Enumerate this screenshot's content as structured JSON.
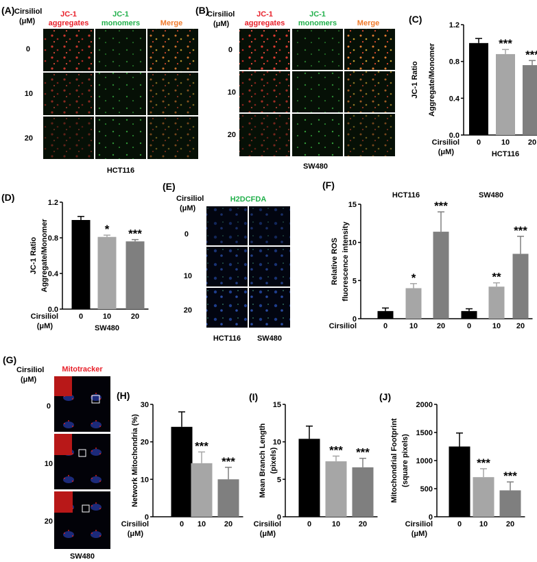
{
  "panels": {
    "A": {
      "label": "(A)",
      "dose_header": "Cirsiliol",
      "dose_unit": "(μM)",
      "col_headers": [
        "JC-1",
        "aggregates",
        "JC-1",
        "monomers",
        "Merge"
      ],
      "row_labels": [
        "0",
        "10",
        "20"
      ],
      "cell_line": "HCT116"
    },
    "B": {
      "label": "(B)",
      "dose_header": "Cirsiliol",
      "dose_unit": "(μM)",
      "col_headers": [
        "JC-1",
        "aggregates",
        "JC-1",
        "monomers",
        "Merge"
      ],
      "row_labels": [
        "0",
        "10",
        "20"
      ],
      "cell_line": "SW480"
    },
    "E": {
      "label": "(E)",
      "dose_header": "Cirsiliol",
      "dose_unit": "(μM)",
      "stain": "H2DCFDA",
      "row_labels": [
        "0",
        "10",
        "20"
      ],
      "col_footers": [
        "HCT116",
        "SW480"
      ]
    },
    "G": {
      "label": "(G)",
      "dose_header": "Cirsiliol",
      "dose_unit": "(μM)",
      "stain": "Mitotracker",
      "row_labels": [
        "0",
        "10",
        "20"
      ],
      "cell_line": "SW480"
    }
  },
  "colors": {
    "black_bar": "#000000",
    "light_bar": "#a6a6a6",
    "mid_bar": "#7f7f7f",
    "red_label": "#e8202a",
    "green_label": "#21b04b",
    "orange_label": "#f07a2a",
    "micro_bg": "#061006"
  },
  "chart_data": [
    {
      "panel": "(C)",
      "type": "bar",
      "ylabel": [
        "JC-1 Ratio",
        "Aggregate/Monomer"
      ],
      "ylim": [
        0,
        1.2
      ],
      "yticks": [
        "0.0",
        "0.4",
        "0.8",
        "1.2"
      ],
      "x_title": "Cirsiliol",
      "x_unit": "(μM)",
      "categories": [
        "0",
        "10",
        "20"
      ],
      "values": [
        1.0,
        0.88,
        0.76
      ],
      "errors": [
        0.05,
        0.05,
        0.05
      ],
      "significance": [
        "",
        "***",
        "***"
      ],
      "group_label": "HCT116"
    },
    {
      "panel": "(D)",
      "type": "bar",
      "ylabel": [
        "JC-1 Ratio",
        "Aggregate/Monomer"
      ],
      "ylim": [
        0,
        1.2
      ],
      "yticks": [
        "0.0",
        "0.4",
        "0.8",
        "1.2"
      ],
      "x_title": "Cirsiliol",
      "x_unit": "(μM)",
      "categories": [
        "0",
        "10",
        "20"
      ],
      "values": [
        1.0,
        0.81,
        0.76
      ],
      "errors": [
        0.04,
        0.02,
        0.02
      ],
      "significance": [
        "",
        "*",
        "***"
      ],
      "group_label": "SW480"
    },
    {
      "panel": "(F)",
      "type": "bar",
      "ylabel": [
        "Relative ROS",
        "fluorescence intensity"
      ],
      "ylim": [
        0,
        15
      ],
      "yticks": [
        "0",
        "5",
        "10",
        "15"
      ],
      "x_title": "Cirsiliol",
      "groups": [
        {
          "name": "HCT116",
          "categories": [
            "0",
            "10",
            "20"
          ],
          "values": [
            1.0,
            4.0,
            11.4
          ],
          "errors": [
            0.4,
            0.6,
            2.6
          ],
          "significance": [
            "",
            "*",
            "***"
          ]
        },
        {
          "name": "SW480",
          "categories": [
            "0",
            "10",
            "20"
          ],
          "values": [
            1.0,
            4.2,
            8.5
          ],
          "errors": [
            0.3,
            0.5,
            2.3
          ],
          "significance": [
            "",
            "**",
            "***"
          ]
        }
      ]
    },
    {
      "panel": "(H)",
      "type": "bar",
      "ylabel": [
        "Network Mitochondria (%)"
      ],
      "ylim": [
        0,
        30
      ],
      "yticks": [
        "0",
        "10",
        "20",
        "30"
      ],
      "x_title": "Cirsiliol",
      "x_unit": "(μM)",
      "categories": [
        "0",
        "10",
        "20"
      ],
      "values": [
        24.0,
        14.3,
        10.0
      ],
      "errors": [
        4.0,
        3.0,
        3.2
      ],
      "significance": [
        "",
        "***",
        "***"
      ]
    },
    {
      "panel": "(I)",
      "type": "bar",
      "ylabel": [
        "Mean Branch Length",
        "(pixels)"
      ],
      "ylim": [
        0,
        15
      ],
      "yticks": [
        "0",
        "5",
        "10",
        "15"
      ],
      "x_title": "Cirsiliol",
      "x_unit": "(μM)",
      "categories": [
        "0",
        "10",
        "20"
      ],
      "values": [
        10.4,
        7.4,
        6.6
      ],
      "errors": [
        1.7,
        0.7,
        1.2
      ],
      "significance": [
        "",
        "***",
        "***"
      ]
    },
    {
      "panel": "(J)",
      "type": "bar",
      "ylabel": [
        "Mitochondrial Footprint",
        "(square pixels)"
      ],
      "ylim": [
        0,
        2000
      ],
      "yticks": [
        "0",
        "500",
        "1000",
        "1500",
        "2000"
      ],
      "x_title": "Cirsiliol",
      "x_unit": "(μM)",
      "categories": [
        "0",
        "10",
        "20"
      ],
      "values": [
        1250,
        705,
        470
      ],
      "errors": [
        240,
        150,
        150
      ],
      "significance": [
        "",
        "***",
        "***"
      ]
    }
  ]
}
